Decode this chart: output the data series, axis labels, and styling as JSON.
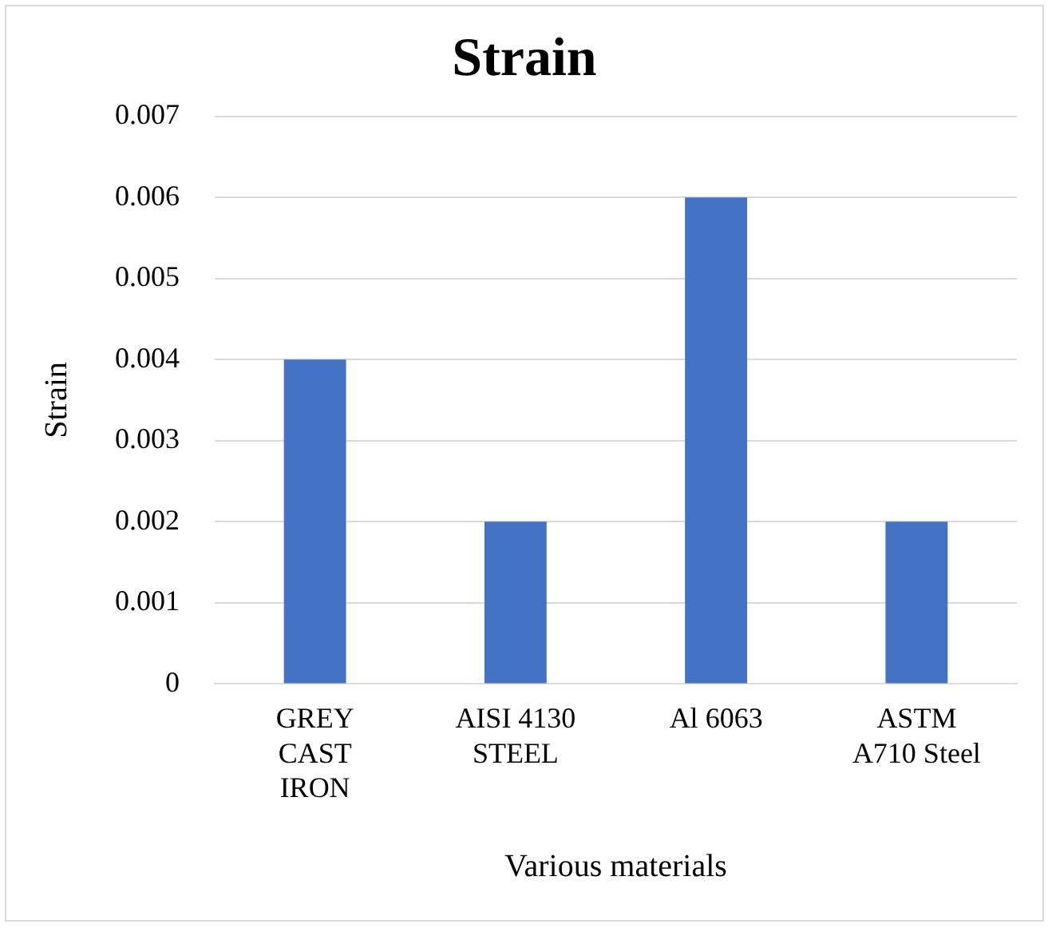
{
  "chart_data": {
    "type": "bar",
    "title": "Strain",
    "xlabel": "Various materials",
    "ylabel": "Strain",
    "categories": [
      "GREY CAST IRON",
      "AISI 4130 STEEL",
      "Al 6063",
      "ASTM A710 Steel"
    ],
    "values": [
      0.004,
      0.002,
      0.006,
      0.002
    ],
    "color": "#4472c4",
    "ylim": [
      0,
      0.007
    ],
    "yticks": [
      0,
      0.001,
      0.002,
      0.003,
      0.004,
      0.005,
      0.006,
      0.007
    ],
    "grid": "y",
    "legend": false
  }
}
